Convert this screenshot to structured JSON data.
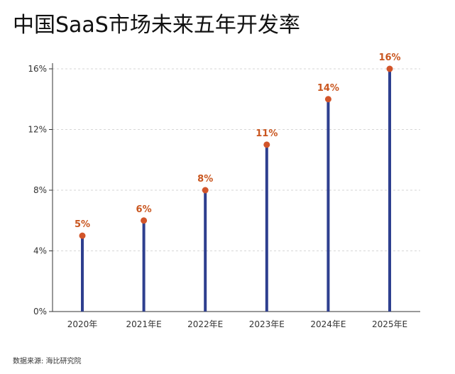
{
  "chart_data": {
    "type": "lollipop",
    "title": "中国SaaS市场未来五年开发率",
    "categories": [
      "2020年",
      "2021年E",
      "2022年E",
      "2023年E",
      "2024年E",
      "2025年E"
    ],
    "values": [
      5,
      6,
      8,
      11,
      14,
      16
    ],
    "data_labels": [
      "5%",
      "6%",
      "8%",
      "11%",
      "14%",
      "16%"
    ],
    "y_ticks": [
      0,
      4,
      8,
      12,
      16
    ],
    "y_tick_labels": [
      "0%",
      "4%",
      "8%",
      "12%",
      "16%"
    ],
    "ylim": [
      0,
      16
    ],
    "grid": true,
    "source": "数据来源: 海比研究院",
    "colors": {
      "stem": "#2e3f8f",
      "dot": "#d2552a",
      "label": "#c9561f",
      "grid": "#d6d6d6",
      "axis": "#333333"
    }
  }
}
